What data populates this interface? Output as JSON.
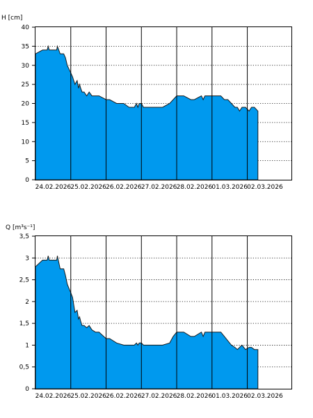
{
  "colors": {
    "fill": "#0099ee",
    "line": "#1a1a1a",
    "background": "#ffffff"
  },
  "chart_data": [
    {
      "type": "area",
      "title": "",
      "ylabel": "H [cm]",
      "xlabel": "",
      "ylim": [
        0,
        40
      ],
      "yticks": [
        "0",
        "5",
        "10",
        "15",
        "20",
        "25",
        "30",
        "35",
        "40"
      ],
      "ytick_values": [
        0,
        5,
        10,
        15,
        20,
        25,
        30,
        35,
        40
      ],
      "xlim": [
        0,
        7.25
      ],
      "xtick_labels": [
        "24.02.2026",
        "25.02.2026",
        "26.02.2026",
        "27.02.2026",
        "28.02.2026",
        "01.03.2026",
        "02.03.2026"
      ],
      "grid": "horizontal dotted, vertical solid at day boundaries",
      "series": [
        {
          "x": [
            0,
            0.2,
            0.33,
            0.36,
            0.39,
            0.6,
            0.62,
            0.66,
            0.7,
            0.8,
            0.85,
            0.9,
            0.95,
            1.0,
            1.05,
            1.12,
            1.18,
            1.22,
            1.25,
            1.28,
            1.32,
            1.38,
            1.45,
            1.52,
            1.6,
            1.7,
            1.8,
            2.0,
            2.1,
            2.3,
            2.5,
            2.65,
            2.8,
            2.86,
            2.9,
            2.94,
            3.0,
            3.06,
            3.1,
            3.3,
            3.6,
            3.8,
            3.9,
            4.0,
            4.2,
            4.4,
            4.5,
            4.7,
            4.75,
            4.8,
            5.0,
            5.25,
            5.35,
            5.45,
            5.55,
            5.65,
            5.72,
            5.78,
            5.85,
            5.95,
            6.05,
            6.12,
            6.2,
            6.3
          ],
          "values": [
            33,
            34,
            34,
            35,
            34,
            34,
            35,
            34,
            33,
            33,
            32,
            30,
            29,
            28,
            27,
            25,
            26,
            24,
            25,
            24,
            23,
            23,
            22,
            23,
            22,
            22,
            22,
            21,
            21,
            20,
            20,
            19,
            19,
            20,
            19,
            20,
            20,
            19,
            19,
            19,
            19,
            20,
            21,
            22,
            22,
            21,
            21,
            22,
            21,
            22,
            22,
            22,
            21,
            21,
            20,
            19,
            19,
            18,
            19,
            19,
            18,
            19,
            19,
            18
          ]
        }
      ]
    },
    {
      "type": "area",
      "title": "",
      "ylabel": "Q [m³s⁻¹]",
      "xlabel": "",
      "ylim": [
        0,
        3.5
      ],
      "yticks": [
        "0",
        "0,5",
        "1",
        "1,5",
        "2",
        "2,5",
        "3",
        "3,5"
      ],
      "ytick_values": [
        0,
        0.5,
        1,
        1.5,
        2,
        2.5,
        3,
        3.5
      ],
      "xlim": [
        0,
        7.25
      ],
      "xtick_labels": [
        "24.02.2026",
        "25.02.2026",
        "26.02.2026",
        "27.02.2026",
        "28.02.2026",
        "01.03.2026",
        "02.03.2026"
      ],
      "grid": "horizontal dotted, vertical solid at day boundaries",
      "series": [
        {
          "x": [
            0,
            0.2,
            0.28,
            0.33,
            0.36,
            0.39,
            0.6,
            0.62,
            0.66,
            0.7,
            0.8,
            0.85,
            0.9,
            0.95,
            1.0,
            1.05,
            1.12,
            1.18,
            1.22,
            1.25,
            1.28,
            1.32,
            1.38,
            1.45,
            1.52,
            1.6,
            1.7,
            1.8,
            2.0,
            2.1,
            2.3,
            2.5,
            2.65,
            2.8,
            2.86,
            2.9,
            2.94,
            3.0,
            3.06,
            3.1,
            3.3,
            3.6,
            3.8,
            3.9,
            4.0,
            4.2,
            4.4,
            4.5,
            4.7,
            4.75,
            4.8,
            5.0,
            5.25,
            5.35,
            5.45,
            5.55,
            5.65,
            5.72,
            5.78,
            5.85,
            5.95,
            6.05,
            6.12,
            6.2,
            6.3
          ],
          "values": [
            2.8,
            2.95,
            2.95,
            2.95,
            3.05,
            2.95,
            2.95,
            3.05,
            2.9,
            2.75,
            2.75,
            2.6,
            2.4,
            2.3,
            2.2,
            2.1,
            1.75,
            1.8,
            1.6,
            1.65,
            1.55,
            1.45,
            1.45,
            1.4,
            1.45,
            1.35,
            1.3,
            1.3,
            1.15,
            1.15,
            1.05,
            1.0,
            1.0,
            1.0,
            1.05,
            1.0,
            1.05,
            1.05,
            1.0,
            1.0,
            1.0,
            1.0,
            1.05,
            1.2,
            1.3,
            1.3,
            1.2,
            1.2,
            1.3,
            1.2,
            1.3,
            1.3,
            1.3,
            1.2,
            1.1,
            1.0,
            0.95,
            0.9,
            0.95,
            1.0,
            0.9,
            0.95,
            0.95,
            0.9,
            0.9
          ]
        }
      ]
    }
  ]
}
